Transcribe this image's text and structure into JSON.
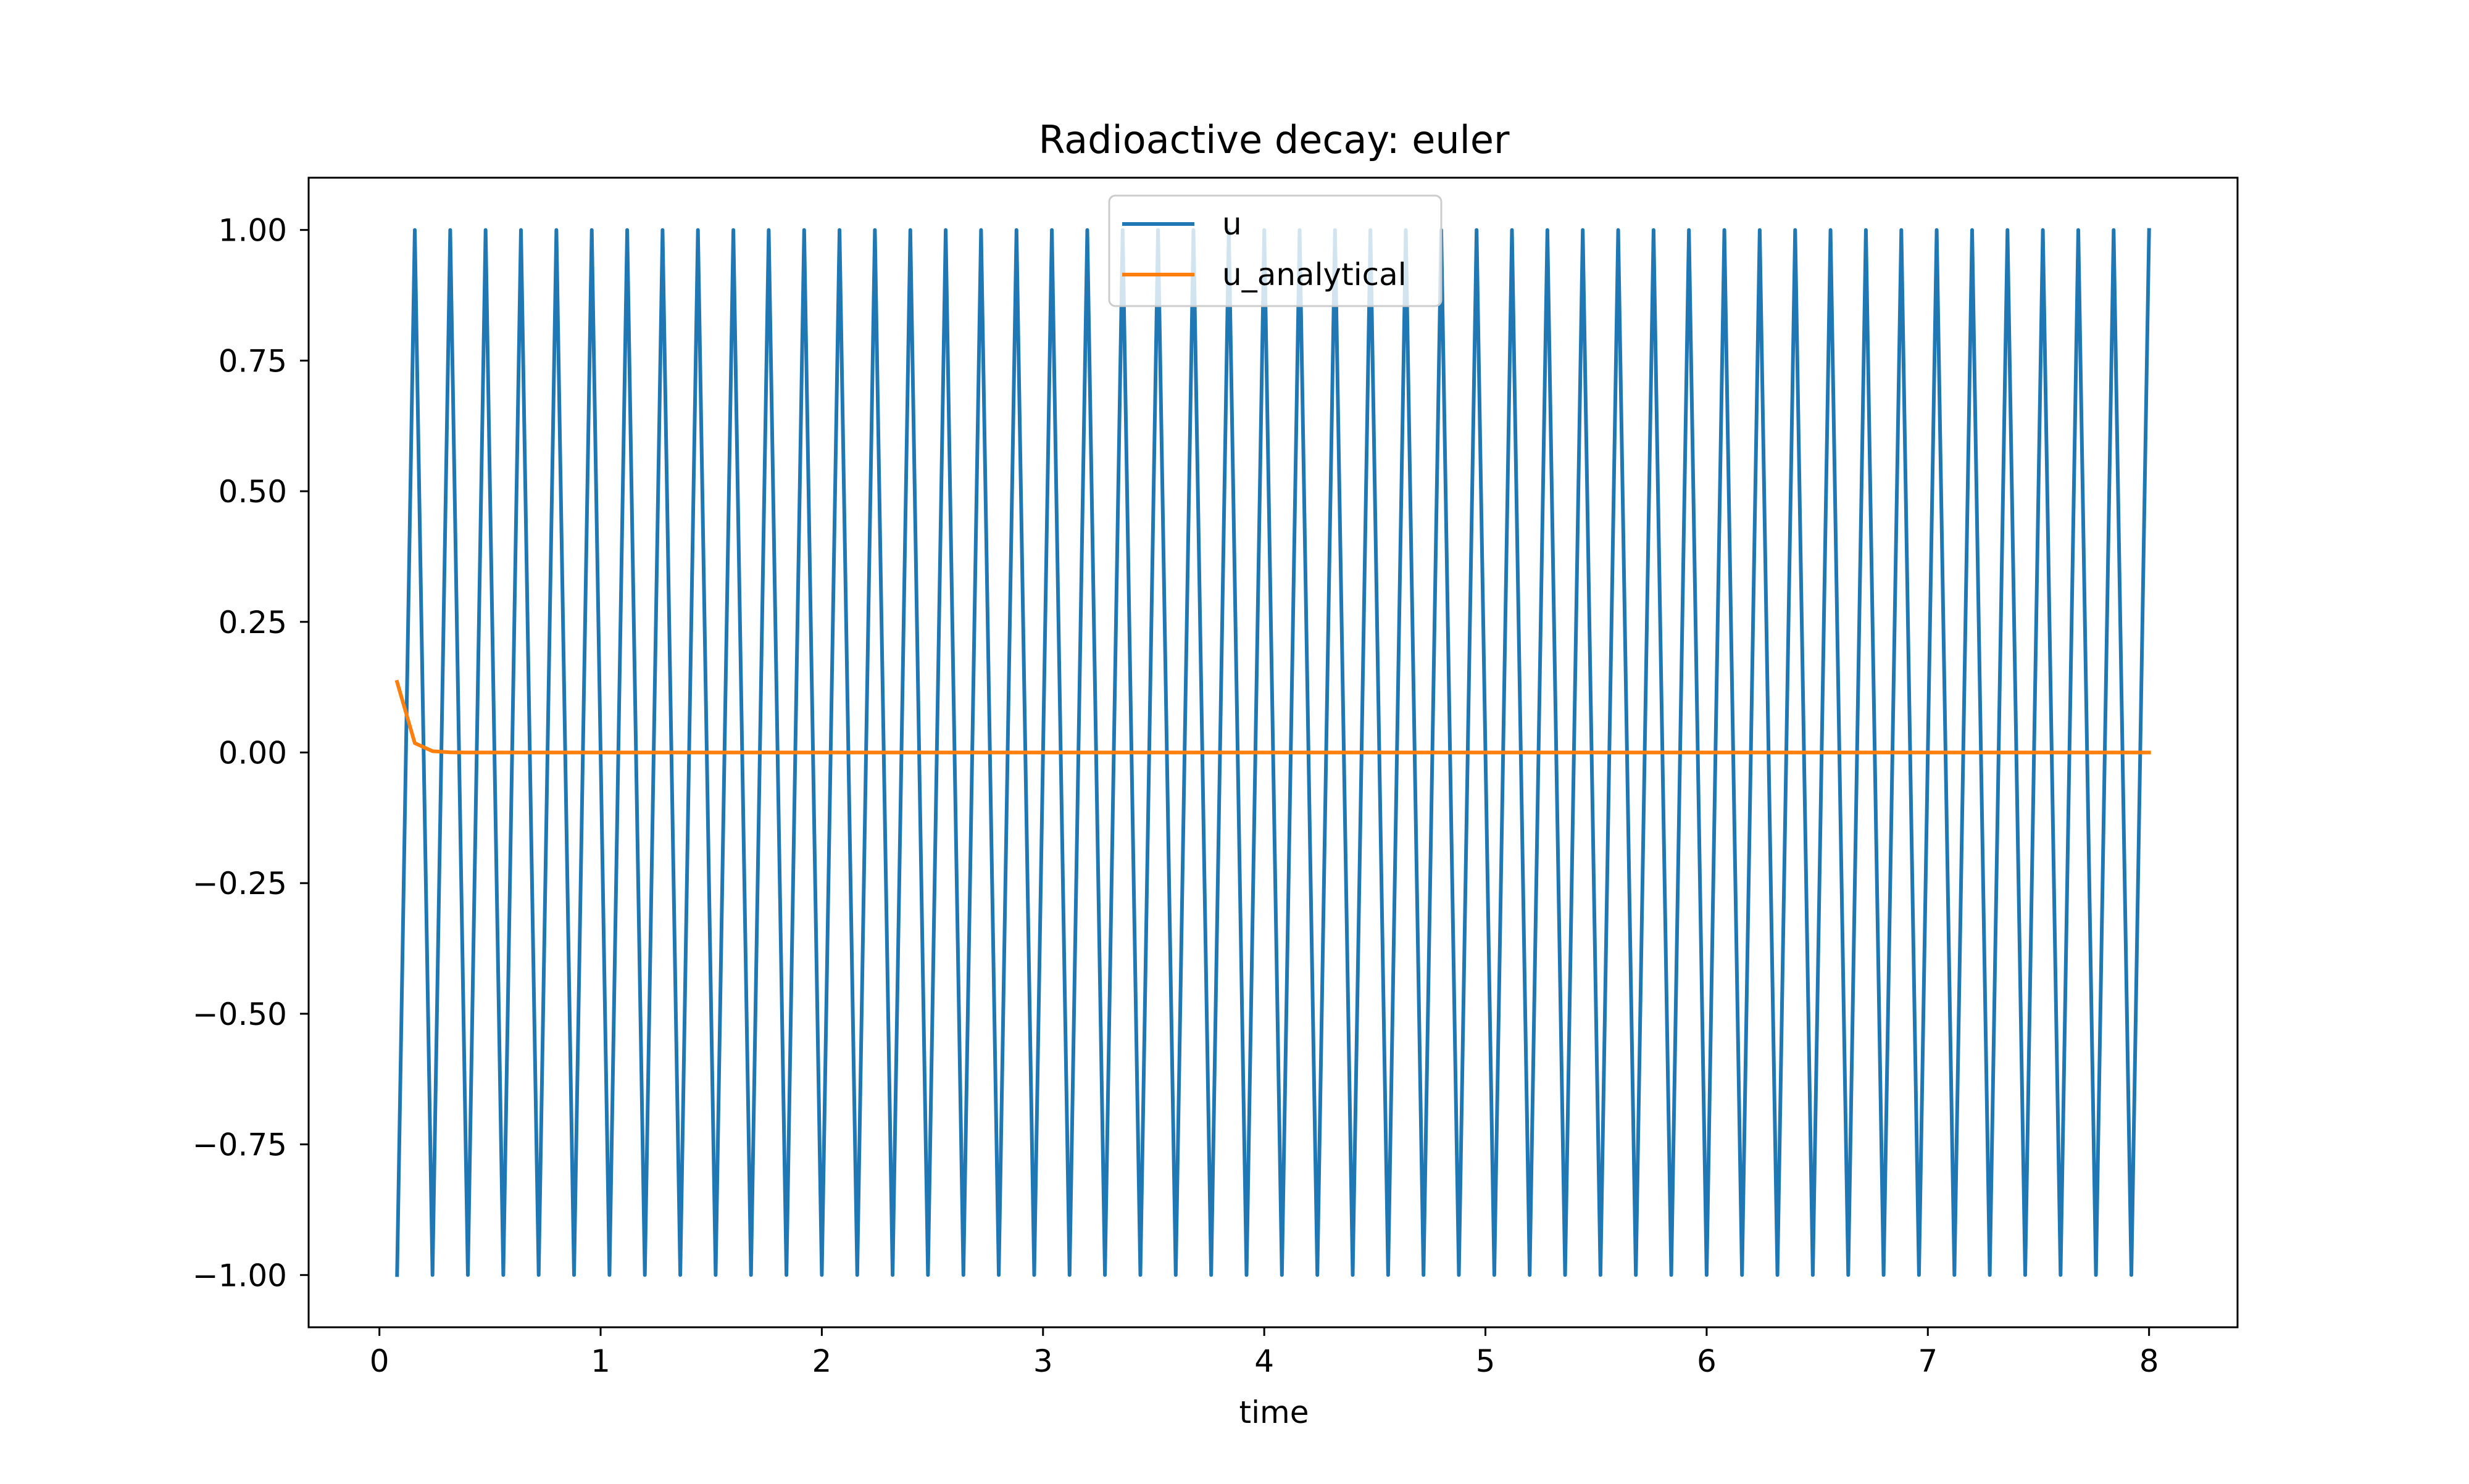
{
  "chart_data": {
    "type": "line",
    "title": "Radioactive decay: euler",
    "xlabel": "time",
    "ylabel": "",
    "xlim": [
      -0.32,
      8.4
    ],
    "ylim": [
      -1.1,
      1.1
    ],
    "xticks": [
      0,
      1,
      2,
      3,
      4,
      5,
      6,
      7,
      8
    ],
    "xtick_labels": [
      "0",
      "1",
      "2",
      "3",
      "4",
      "5",
      "6",
      "7",
      "8"
    ],
    "yticks": [
      1.0,
      0.75,
      0.5,
      0.25,
      0.0,
      -0.25,
      -0.5,
      -0.75,
      -1.0
    ],
    "ytick_labels": [
      "1.00",
      "0.75",
      "0.50",
      "0.25",
      "0.00",
      "−0.25",
      "−0.50",
      "−0.75",
      "−1.00"
    ],
    "grid": false,
    "legend_position": "upper center",
    "series": [
      {
        "name": "u",
        "color": "#1f77b4",
        "x": [
          0.08,
          0.16,
          0.24,
          0.32,
          0.4,
          0.48,
          0.56,
          0.64,
          0.72,
          0.8,
          0.88,
          0.96,
          1.04,
          1.12,
          1.2,
          1.28,
          1.36,
          1.44,
          1.52,
          1.6,
          1.68,
          1.76,
          1.84,
          1.92,
          2.0,
          2.08,
          2.16,
          2.24,
          2.32,
          2.4,
          2.48,
          2.56,
          2.64,
          2.72,
          2.8,
          2.88,
          2.96,
          3.04,
          3.12,
          3.2,
          3.28,
          3.36,
          3.44,
          3.52,
          3.6,
          3.68,
          3.76,
          3.84,
          3.92,
          4.0,
          4.08,
          4.16,
          4.24,
          4.32,
          4.4,
          4.48,
          4.56,
          4.64,
          4.72,
          4.8,
          4.88,
          4.96,
          5.04,
          5.12,
          5.2,
          5.28,
          5.36,
          5.44,
          5.52,
          5.6,
          5.68,
          5.76,
          5.84,
          5.92,
          6.0,
          6.08,
          6.16,
          6.24,
          6.32,
          6.4,
          6.48,
          6.56,
          6.64,
          6.72,
          6.8,
          6.88,
          6.96,
          7.04,
          7.12,
          7.2,
          7.28,
          7.36,
          7.44,
          7.52,
          7.6,
          7.68,
          7.76,
          7.84,
          7.92,
          8.0
        ],
        "y": [
          -1,
          1,
          -1,
          1,
          -1,
          1,
          -1,
          1,
          -1,
          1,
          -1,
          1,
          -1,
          1,
          -1,
          1,
          -1,
          1,
          -1,
          1,
          -1,
          1,
          -1,
          1,
          -1,
          1,
          -1,
          1,
          -1,
          1,
          -1,
          1,
          -1,
          1,
          -1,
          1,
          -1,
          1,
          -1,
          1,
          -1,
          1,
          -1,
          1,
          -1,
          1,
          -1,
          1,
          -1,
          1,
          -1,
          1,
          -1,
          1,
          -1,
          1,
          -1,
          1,
          -1,
          1,
          -1,
          1,
          -1,
          1,
          -1,
          1,
          -1,
          1,
          -1,
          1,
          -1,
          1,
          -1,
          1,
          -1,
          1,
          -1,
          1,
          -1,
          1,
          -1,
          1,
          -1,
          1,
          -1,
          1,
          -1,
          1,
          -1,
          1,
          -1,
          1,
          -1,
          1,
          -1,
          1,
          -1,
          1,
          -1,
          1
        ]
      },
      {
        "name": "u_analytical",
        "color": "#ff7f0e",
        "x": [
          0.08,
          0.16,
          0.24,
          0.32,
          0.4,
          8.0
        ],
        "y": [
          0.135,
          0.018,
          0.0025,
          0.0003,
          0.0,
          0.0
        ]
      }
    ]
  }
}
